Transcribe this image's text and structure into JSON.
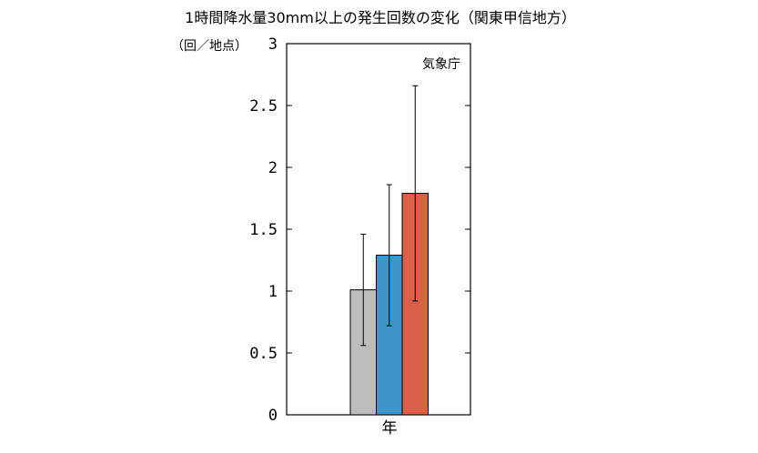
{
  "chart_data": {
    "type": "bar",
    "title": "1時間降水量30mm以上の発生回数の変化（関東甲信地方）",
    "ylabel": "（回／地点）",
    "source": "気象庁",
    "categories": [
      "年"
    ],
    "ylim": [
      0,
      3
    ],
    "yticks": [
      "0",
      "0.5",
      "1",
      "1.5",
      "2",
      "2.5",
      "3"
    ],
    "grid": false,
    "series": [
      {
        "color": "#bdbdbd",
        "values": [
          1.01
        ],
        "error_low": [
          0.56
        ],
        "error_high": [
          1.46
        ]
      },
      {
        "color": "#3d95c9",
        "values": [
          1.29
        ],
        "error_low": [
          0.72
        ],
        "error_high": [
          1.86
        ]
      },
      {
        "color": "#d9604b",
        "values": [
          1.79
        ],
        "error_low": [
          0.92
        ],
        "error_high": [
          2.66
        ]
      }
    ]
  }
}
